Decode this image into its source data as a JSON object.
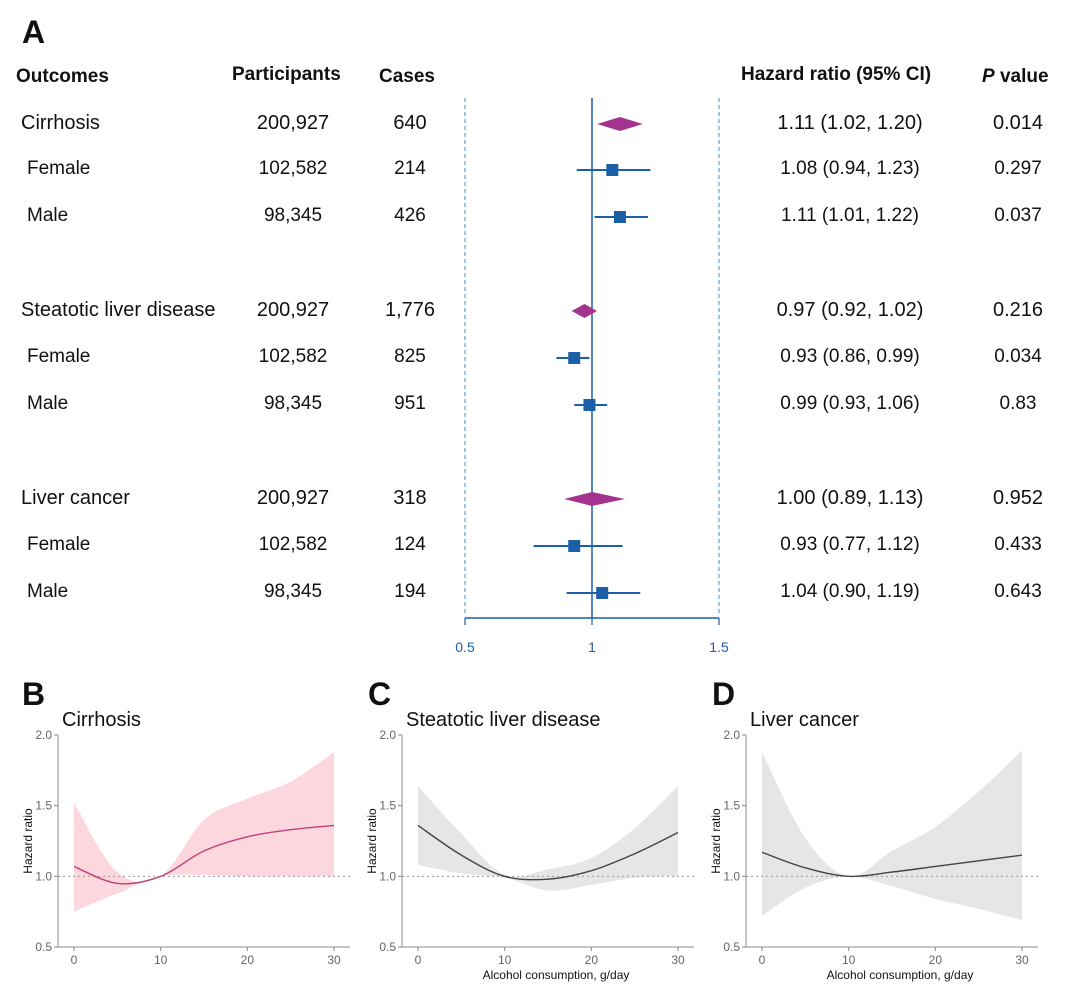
{
  "panels": {
    "a": "A",
    "b": "B",
    "c": "C",
    "d": "D"
  },
  "forest": {
    "headers": {
      "outcomes": "Outcomes",
      "participants": "Participants",
      "cases": "Cases",
      "hr": "Hazard ratio (95% CI)",
      "p_italic": "P",
      "p_rest": " value"
    },
    "rows": [
      {
        "label": "Cirrhosis",
        "participants": "200,927",
        "cases": "640",
        "hr_text": "1.11 (1.02, 1.20)",
        "p": "0.014",
        "hr": 1.11,
        "lo": 1.02,
        "hi": 1.2,
        "marker": "diamond"
      },
      {
        "label": "Female",
        "participants": "102,582",
        "cases": "214",
        "hr_text": "1.08 (0.94, 1.23)",
        "p": "0.297",
        "hr": 1.08,
        "lo": 0.94,
        "hi": 1.23,
        "marker": "square"
      },
      {
        "label": "Male",
        "participants": "98,345",
        "cases": "426",
        "hr_text": "1.11 (1.01, 1.22)",
        "p": "0.037",
        "hr": 1.11,
        "lo": 1.01,
        "hi": 1.22,
        "marker": "square"
      },
      {
        "label": "Steatotic liver disease",
        "participants": "200,927",
        "cases": "1,776",
        "hr_text": "0.97 (0.92, 1.02)",
        "p": "0.216",
        "hr": 0.97,
        "lo": 0.92,
        "hi": 1.02,
        "marker": "diamond"
      },
      {
        "label": "Female",
        "participants": "102,582",
        "cases": "825",
        "hr_text": "0.93 (0.86, 0.99)",
        "p": "0.034",
        "hr": 0.93,
        "lo": 0.86,
        "hi": 0.99,
        "marker": "square"
      },
      {
        "label": "Male",
        "participants": "98,345",
        "cases": "951",
        "hr_text": "0.99 (0.93, 1.06)",
        "p": "0.83",
        "hr": 0.99,
        "lo": 0.93,
        "hi": 1.06,
        "marker": "square"
      },
      {
        "label": "Liver cancer",
        "participants": "200,927",
        "cases": "318",
        "hr_text": "1.00 (0.89, 1.13)",
        "p": "0.952",
        "hr": 1.0,
        "lo": 0.89,
        "hi": 1.13,
        "marker": "diamond"
      },
      {
        "label": "Female",
        "participants": "102,582",
        "cases": "124",
        "hr_text": "0.93 (0.77, 1.12)",
        "p": "0.433",
        "hr": 0.93,
        "lo": 0.77,
        "hi": 1.12,
        "marker": "square"
      },
      {
        "label": "Male",
        "participants": "98,345",
        "cases": "194",
        "hr_text": "1.04 (0.90, 1.19)",
        "p": "0.643",
        "hr": 1.04,
        "lo": 0.9,
        "hi": 1.19,
        "marker": "square"
      }
    ],
    "x_ticks": [
      "0.5",
      "1",
      "1.5"
    ]
  },
  "colors": {
    "forest_blue": "#1b5fa6",
    "dashed_blue": "#3d8fe0",
    "diamond": "#a3338f",
    "square": "#1b5fa6",
    "cirrhosis_band": "#fcd7de",
    "cirrhosis_line": "#c0407a",
    "gray_band": "#e6e6e6",
    "gray_line": "#444444"
  },
  "chart_data": [
    {
      "type": "forest",
      "title": "Hazard ratio (95% CI)",
      "xlim": [
        0.5,
        1.5
      ],
      "reference": 1,
      "categories": [
        "Cirrhosis",
        "Cirrhosis Female",
        "Cirrhosis Male",
        "Steatotic liver disease",
        "Steatotic liver disease Female",
        "Steatotic liver disease Male",
        "Liver cancer",
        "Liver cancer Female",
        "Liver cancer Male"
      ],
      "hr": [
        1.11,
        1.08,
        1.11,
        0.97,
        0.93,
        0.99,
        1.0,
        0.93,
        1.04
      ],
      "lower": [
        1.02,
        0.94,
        1.01,
        0.92,
        0.86,
        0.93,
        0.89,
        0.77,
        0.9
      ],
      "upper": [
        1.2,
        1.23,
        1.22,
        1.02,
        0.99,
        1.06,
        1.13,
        1.12,
        1.19
      ]
    },
    {
      "type": "line",
      "title": "Cirrhosis",
      "xlabel": "",
      "ylabel": "Hazard ratio",
      "xlim": [
        0,
        30
      ],
      "ylim": [
        0.5,
        2.0
      ],
      "x_ticks": [
        "0",
        "10",
        "20",
        "30"
      ],
      "y_ticks": [
        "0.5",
        "1.0",
        "1.5",
        "2.0"
      ],
      "x": [
        0,
        5,
        10,
        15,
        20,
        25,
        30
      ],
      "y": [
        1.07,
        0.95,
        1.0,
        1.18,
        1.28,
        1.33,
        1.36
      ],
      "lower": [
        0.75,
        0.88,
        1.0,
        1.01,
        1.0,
        1.0,
        1.0
      ],
      "upper": [
        1.52,
        1.03,
        1.0,
        1.4,
        1.55,
        1.67,
        1.88
      ]
    },
    {
      "type": "line",
      "title": "Steatotic liver disease",
      "xlabel": "Alcohol consumption, g/day",
      "ylabel": "Hazard ratio",
      "xlim": [
        0,
        30
      ],
      "ylim": [
        0.5,
        2.0
      ],
      "x_ticks": [
        "0",
        "10",
        "20",
        "30"
      ],
      "y_ticks": [
        "0.5",
        "1.0",
        "1.5",
        "2.0"
      ],
      "x": [
        0,
        5,
        10,
        15,
        20,
        25,
        30
      ],
      "y": [
        1.36,
        1.15,
        1.0,
        0.98,
        1.04,
        1.16,
        1.31
      ],
      "lower": [
        1.08,
        1.02,
        0.99,
        0.9,
        0.94,
        0.99,
        1.0
      ],
      "upper": [
        1.64,
        1.3,
        1.01,
        1.05,
        1.13,
        1.34,
        1.64
      ]
    },
    {
      "type": "line",
      "title": "Liver cancer",
      "xlabel": "Alcohol consumption, g/day",
      "ylabel": "Hazard ratio",
      "xlim": [
        0,
        30
      ],
      "ylim": [
        0.5,
        2.0
      ],
      "x_ticks": [
        "0",
        "10",
        "20",
        "30"
      ],
      "y_ticks": [
        "0.5",
        "1.0",
        "1.5",
        "2.0"
      ],
      "x": [
        0,
        5,
        10,
        15,
        20,
        25,
        30
      ],
      "y": [
        1.17,
        1.06,
        1.0,
        1.03,
        1.07,
        1.11,
        1.15
      ],
      "lower": [
        0.72,
        0.92,
        1.0,
        0.93,
        0.84,
        0.77,
        0.69
      ],
      "upper": [
        1.88,
        1.27,
        1.0,
        1.18,
        1.35,
        1.6,
        1.89
      ]
    }
  ]
}
